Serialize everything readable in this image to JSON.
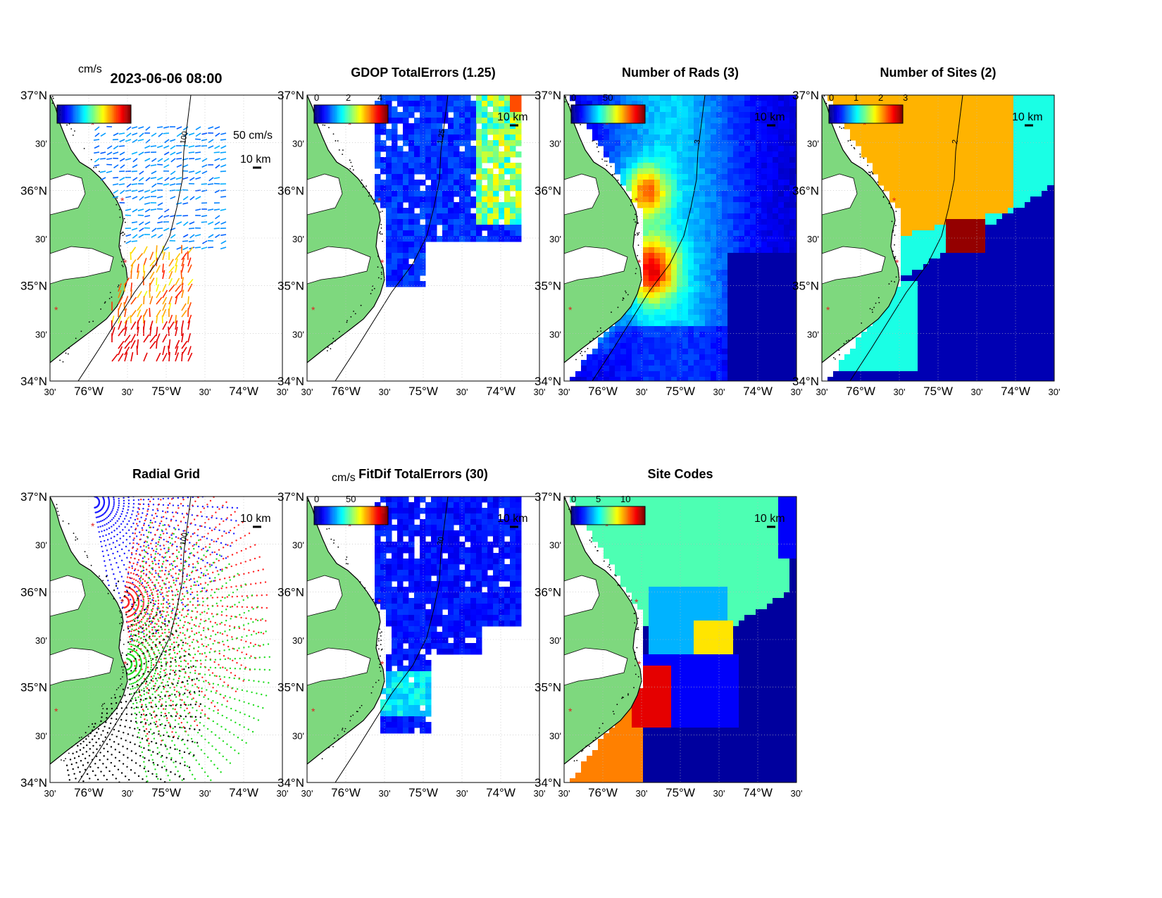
{
  "panels": [
    {
      "id": "p1",
      "title": "2023-06-06 08:00",
      "cb_label": "cm/s",
      "cb_ticks": [],
      "scale_label": "10 km",
      "vector_scale_label": "50 cm/s",
      "contour_label": "100"
    },
    {
      "id": "p2",
      "title": "GDOP TotalErrors (1.25)",
      "cb_label": "",
      "cb_ticks": [
        "0",
        "2",
        "4"
      ],
      "scale_label": "10 km",
      "contour_label": "1.25"
    },
    {
      "id": "p3",
      "title": "Number of Rads (3)",
      "cb_label": "",
      "cb_ticks": [
        "0",
        "50"
      ],
      "scale_label": "10 km",
      "contour_label": "3"
    },
    {
      "id": "p4",
      "title": "Number of Sites (2)",
      "cb_label": "",
      "cb_ticks": [
        "0",
        "1",
        "2",
        "3"
      ],
      "scale_label": "10 km",
      "contour_label": "2"
    },
    {
      "id": "p5",
      "title": "Radial Grid",
      "cb_label": "",
      "cb_ticks": [],
      "scale_label": "10 km",
      "contour_label": "100"
    },
    {
      "id": "p6",
      "title": "FitDif TotalErrors (30)",
      "cb_label": "cm/s",
      "cb_ticks": [
        "0",
        "50"
      ],
      "scale_label": "10 km",
      "contour_label": "30"
    },
    {
      "id": "p7",
      "title": "Site Codes",
      "cb_label": "",
      "cb_ticks": [
        "0",
        "5",
        "10"
      ],
      "scale_label": "10 km",
      "contour_label": ""
    }
  ],
  "axes": {
    "lat_ticks": [
      "37°N",
      "30'",
      "36°N",
      "30'",
      "35°N",
      "30'",
      "34°N"
    ],
    "lon_ticks": [
      "30'",
      "76°W",
      "30'",
      "75°W",
      "30'",
      "74°W",
      "30'"
    ]
  },
  "colors": {
    "land": "#7ed87e",
    "jet_dark_blue": "#00008f",
    "jet_blue": "#0a2ee6",
    "jet_cyan": "#00d8f0",
    "jet_yellow": "#ffc800",
    "jet_red": "#8f0000",
    "site_marker": "#e02020"
  }
}
